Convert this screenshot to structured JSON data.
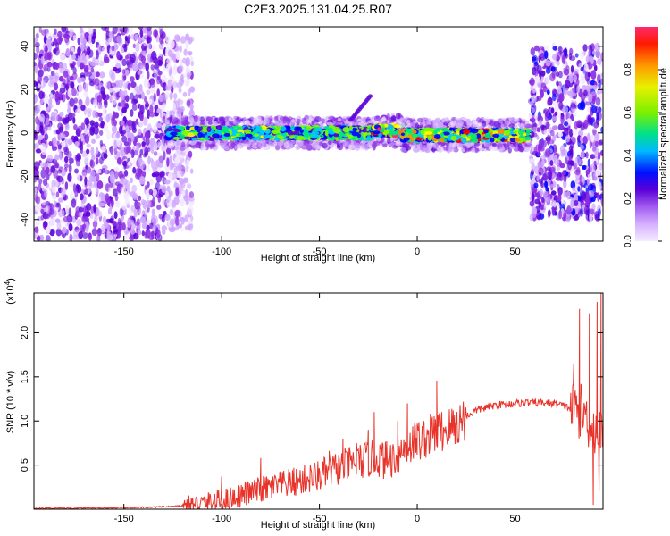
{
  "title": "C2E3.2025.131.04.25.R07",
  "chart_data": [
    {
      "type": "heatmap",
      "xlabel": "Height of straight line (km)",
      "ylabel": "Frequency (Hz)",
      "xlim": [
        -196,
        95
      ],
      "ylim": [
        -50,
        49
      ],
      "xticks": [
        -150,
        -100,
        -50,
        0,
        50
      ],
      "yticks": [
        -40,
        -20,
        0,
        20,
        40
      ],
      "colorbar": {
        "label": "Normalized spectral amplitude",
        "range": [
          0.0,
          1.0
        ],
        "ticks": [
          0.0,
          0.2,
          0.4,
          0.6,
          0.8
        ],
        "colors": [
          "#f2e6ff",
          "#cfa6ff",
          "#8a2be2",
          "#5a00d8",
          "#0000ff",
          "#00c8ff",
          "#00e87a",
          "#7cfc00",
          "#ffff00",
          "#ff8c00",
          "#ff0000",
          "#ff2a6e"
        ]
      },
      "regions": [
        {
          "x": [
            -196,
            -128
          ],
          "freq_spread": 49,
          "max_amp": 0.3
        },
        {
          "x": [
            -128,
            -115
          ],
          "freq_spread": 45,
          "max_amp": 0.15
        },
        {
          "x": [
            -128,
            -22
          ],
          "center_freq": 0,
          "max_amp": 0.7
        },
        {
          "x": [
            -22,
            -8
          ],
          "center_freq": 1,
          "max_amp": 1.0
        },
        {
          "x": [
            -8,
            58
          ],
          "center_freq": -1,
          "max_amp": 0.9
        },
        {
          "x": [
            58,
            95
          ],
          "freq_spread": 40,
          "max_amp": 0.35
        }
      ],
      "harmonics": [
        {
          "x": [
            -34,
            -24
          ],
          "freq": [
            6,
            17
          ]
        }
      ]
    },
    {
      "type": "line",
      "xlabel": "Height of straight line (km)",
      "ylabel": "SNR (10 * v/v)",
      "y_multiplier": "(x10^4)",
      "xlim": [
        -196,
        95
      ],
      "ylim": [
        0,
        2.45
      ],
      "xticks": [
        -150,
        -100,
        -50,
        0,
        50
      ],
      "yticks": [
        0.5,
        1.0,
        1.5,
        2.0
      ],
      "color": "#e8332a",
      "points": [
        [
          -196,
          0.01
        ],
        [
          -150,
          0.015
        ],
        [
          -125,
          0.03
        ],
        [
          -110,
          0.06
        ],
        [
          -100,
          0.1
        ],
        [
          -90,
          0.16
        ],
        [
          -80,
          0.22
        ],
        [
          -70,
          0.27
        ],
        [
          -60,
          0.32
        ],
        [
          -50,
          0.38
        ],
        [
          -40,
          0.47
        ],
        [
          -30,
          0.54
        ],
        [
          -20,
          0.58
        ],
        [
          -15,
          0.55
        ],
        [
          -10,
          0.62
        ],
        [
          -5,
          0.72
        ],
        [
          0,
          0.78
        ],
        [
          5,
          0.82
        ],
        [
          10,
          0.88
        ],
        [
          15,
          0.9
        ],
        [
          20,
          0.95
        ],
        [
          25,
          1.05
        ],
        [
          30,
          1.12
        ],
        [
          40,
          1.18
        ],
        [
          50,
          1.2
        ],
        [
          60,
          1.21
        ],
        [
          70,
          1.2
        ],
        [
          78,
          1.15
        ],
        [
          85,
          1.1
        ],
        [
          90,
          0.9
        ],
        [
          95,
          0.8
        ]
      ],
      "spikes": [
        [
          -80,
          0.58
        ],
        [
          -45,
          0.66
        ],
        [
          -38,
          0.8
        ],
        [
          -31,
          0.75
        ],
        [
          -25,
          0.9
        ],
        [
          -22,
          1.1
        ],
        [
          -10,
          1.0
        ],
        [
          -5,
          1.2
        ],
        [
          0,
          0.97
        ],
        [
          10,
          1.45
        ],
        [
          -100,
          0.37
        ],
        [
          80,
          1.65
        ],
        [
          83,
          2.27
        ],
        [
          88,
          2.22
        ],
        [
          92,
          2.35
        ],
        [
          94,
          2.45
        ]
      ],
      "dips": [
        [
          90,
          0.05
        ],
        [
          93,
          0.2
        ]
      ]
    }
  ]
}
